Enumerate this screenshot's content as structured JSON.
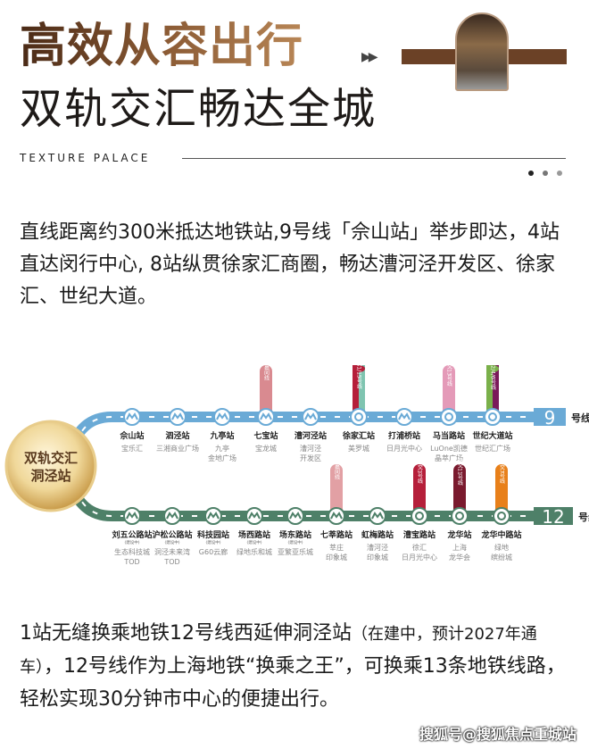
{
  "header": {
    "title_line1": "高效从容出行",
    "title_line2": "双轨交汇畅达全城",
    "brand": "TEXTURE PALACE",
    "arrows": "▶▶",
    "pager_dots": 3
  },
  "intro_paragraph": "直线距离约300米抵达地铁站,9号线「佘山站」举步即达，4站直达闵行中心, 8站纵贯徐家汇商圈，畅达漕河泾开发区、徐家汇、世纪大道。",
  "metro_map": {
    "hub_label_line1": "双轨交汇",
    "hub_label_line2": "洞泾站",
    "line9": {
      "number": "9",
      "suffix": "号线",
      "color": "#6aaad6",
      "stations": [
        {
          "name": "佘山站",
          "landmark": [
            "宝乐汇"
          ]
        },
        {
          "name": "泗泾站",
          "landmark": [
            "三湘商业广场"
          ]
        },
        {
          "name": "九亭站",
          "landmark": [
            "九亭",
            "金地广场"
          ]
        },
        {
          "name": "七宝站",
          "landmark": [
            "宝龙城"
          ],
          "transfer": {
            "label": "嘉闵线",
            "colors": [
              "#d98a90"
            ]
          }
        },
        {
          "name": "漕河泾站",
          "landmark": [
            "漕河泾",
            "开发区"
          ]
        },
        {
          "name": "徐家汇站",
          "landmark": [
            "美罗城"
          ],
          "transfer": {
            "label": "轨交1/15号线",
            "colors": [
              "#b51f3a",
              "#7fc4b0"
            ]
          },
          "interchange": true
        },
        {
          "name": "打浦桥站",
          "landmark": [
            "日月光中心"
          ]
        },
        {
          "name": "马当路站",
          "landmark": [
            "LuOne凯德",
            "晶萃广场"
          ],
          "transfer": {
            "label": "轨交13号线",
            "colors": [
              "#e49ab8"
            ]
          },
          "interchange": true
        },
        {
          "name": "世纪大道站",
          "landmark": [
            "世纪汇广场"
          ],
          "transfer": {
            "label": "轨交2/4/6号线",
            "colors": [
              "#7ab04a",
              "#7a1a5a"
            ]
          },
          "interchange": true
        }
      ]
    },
    "line12": {
      "number": "12",
      "suffix": "号线",
      "color": "#4e8068",
      "under_construction_note": "(建设中)",
      "stations": [
        {
          "name": "刘五公路站",
          "landmark": [
            "生态科技城",
            "TOD"
          ],
          "building": true
        },
        {
          "name": "沪松公路站",
          "landmark": [
            "洞泾未来湾",
            "TOD"
          ],
          "building": true
        },
        {
          "name": "科技园站",
          "landmark": [
            "G60云廊"
          ],
          "building": true
        },
        {
          "name": "场西路站",
          "landmark": [
            "绿地乐和城"
          ],
          "building": true
        },
        {
          "name": "场东路站",
          "landmark": [
            "亚繁亚乐城"
          ],
          "building": true
        },
        {
          "name": "七莘路站",
          "landmark": [
            "莘庄",
            "印象城"
          ],
          "transfer": {
            "label": "嘉闵线",
            "colors": [
              "#e2a0a4"
            ]
          }
        },
        {
          "name": "虹梅路站",
          "landmark": [
            "漕河泾",
            "印象城"
          ]
        },
        {
          "name": "漕宝路站",
          "landmark": [
            "徐汇",
            "日月光中心"
          ],
          "transfer": {
            "label": "轨交1号线",
            "colors": [
              "#b51f3a"
            ]
          },
          "interchange": true
        },
        {
          "name": "龙华站",
          "landmark": [
            "上海",
            "龙华会"
          ],
          "transfer": {
            "label": "轨交11号线",
            "colors": [
              "#7a1a2e"
            ]
          },
          "interchange": true
        },
        {
          "name": "龙华中路站",
          "landmark": [
            "绿地",
            "缤纷城"
          ],
          "transfer": {
            "label": "轨交7号线",
            "colors": [
              "#e8801a"
            ]
          },
          "interchange": true
        }
      ]
    }
  },
  "closing_paragraph": {
    "text_a": "1站无缝换乘地铁12号线西延伸洞泾站",
    "text_b": "（在建中，预计2027年通车）",
    "text_c": "，12号线作为上海地铁“换乘之王”，可换乘13条地铁线路，轻松实现30分钟市中心的便捷出行。"
  },
  "watermark": "搜狐号@搜狐焦点重城站"
}
